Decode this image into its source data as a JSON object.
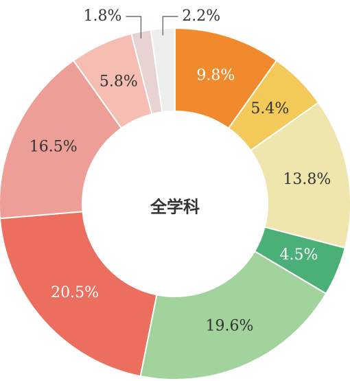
{
  "chart_data": {
    "type": "pie",
    "donut": true,
    "center_label": "全学科",
    "title": "",
    "legend": "none",
    "slices": [
      {
        "label": "9.8%",
        "value": 9.8,
        "color": "#F08A2C",
        "label_color": "#ffffff"
      },
      {
        "label": "5.4%",
        "value": 5.4,
        "color": "#F3C95A",
        "label_color": "#333333"
      },
      {
        "label": "13.8%",
        "value": 13.8,
        "color": "#EFE6AE",
        "label_color": "#333333"
      },
      {
        "label": "4.5%",
        "value": 4.5,
        "color": "#4BAF78",
        "label_color": "#ffffff"
      },
      {
        "label": "19.6%",
        "value": 19.6,
        "color": "#A2D39C",
        "label_color": "#333333"
      },
      {
        "label": "20.5%",
        "value": 20.5,
        "color": "#EC6E5E",
        "label_color": "#ffffff"
      },
      {
        "label": "16.5%",
        "value": 16.5,
        "color": "#ED9E96",
        "label_color": "#333333"
      },
      {
        "label": "5.8%",
        "value": 5.8,
        "color": "#F6BDB3",
        "label_color": "#333333"
      },
      {
        "label": "1.8%",
        "value": 1.8,
        "color": "#E9D2D2",
        "label_color": "#333333",
        "callout": "left"
      },
      {
        "label": "2.2%",
        "value": 2.2,
        "color": "#EEEEEE",
        "label_color": "#333333",
        "callout": "right"
      }
    ]
  }
}
